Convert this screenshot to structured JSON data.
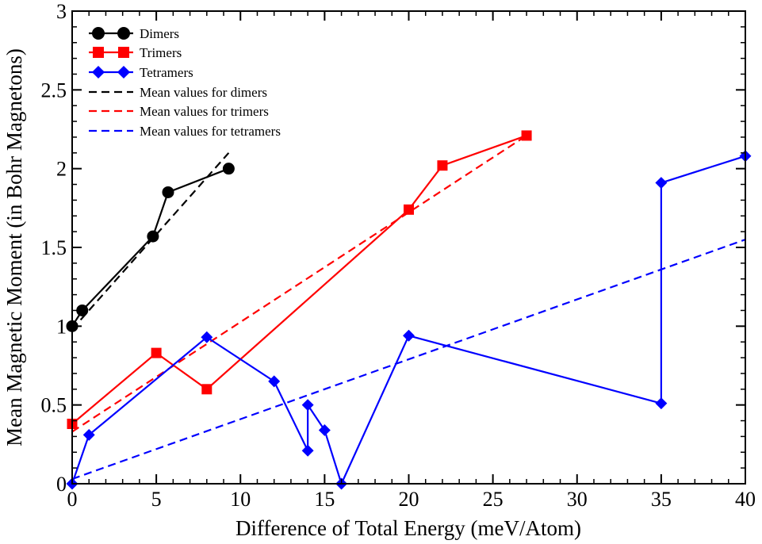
{
  "chart_data": {
    "type": "line",
    "title": "",
    "xlabel": "Difference of Total Energy (meV/Atom)",
    "ylabel": "Mean Magnetic Moment (in Bohr Magnetons)",
    "xlim": [
      0,
      40
    ],
    "ylim": [
      0,
      3
    ],
    "xticks": [
      0,
      5,
      10,
      15,
      20,
      25,
      30,
      35,
      40
    ],
    "yticks": [
      0,
      0.5,
      1,
      1.5,
      2,
      2.5,
      3
    ],
    "xtick_labels": [
      "0",
      "5",
      "10",
      "15",
      "20",
      "25",
      "30",
      "35",
      "40"
    ],
    "ytick_labels": [
      "0",
      "0.5",
      "1",
      "1.5",
      "2",
      "2.5",
      "3"
    ],
    "grid": false,
    "legend_position": "top-left",
    "series": [
      {
        "name": "Dimers",
        "style": "solid",
        "marker": "circle",
        "color": "#000000",
        "points": [
          [
            0,
            1.0
          ],
          [
            0.6,
            1.1
          ],
          [
            4.8,
            1.57
          ],
          [
            5.7,
            1.85
          ],
          [
            9.3,
            2.0
          ]
        ]
      },
      {
        "name": "Trimers",
        "style": "solid",
        "marker": "square",
        "color": "#ff0000",
        "points": [
          [
            0,
            0.38
          ],
          [
            5,
            0.83
          ],
          [
            8,
            0.6
          ],
          [
            20,
            1.74
          ],
          [
            22,
            2.02
          ],
          [
            27,
            2.21
          ]
        ]
      },
      {
        "name": "Tetramers",
        "style": "solid",
        "marker": "diamond",
        "color": "#0000ff",
        "points": [
          [
            0,
            0.0
          ],
          [
            1,
            0.31
          ],
          [
            8,
            0.93
          ],
          [
            12,
            0.65
          ],
          [
            14,
            0.21
          ],
          [
            14,
            0.5
          ],
          [
            15,
            0.34
          ],
          [
            16,
            0.0
          ],
          [
            20,
            0.94
          ],
          [
            35,
            0.51
          ],
          [
            35,
            1.91
          ],
          [
            40,
            2.08
          ]
        ]
      },
      {
        "name": "Mean values for dimers",
        "style": "dashed",
        "marker": "none",
        "color": "#000000",
        "points": [
          [
            0,
            0.98
          ],
          [
            9.3,
            2.1
          ]
        ]
      },
      {
        "name": "Mean values for trimers",
        "style": "dashed",
        "marker": "none",
        "color": "#ff0000",
        "points": [
          [
            0,
            0.33
          ],
          [
            27,
            2.21
          ]
        ]
      },
      {
        "name": "Mean values for tetramers",
        "style": "dashed",
        "marker": "none",
        "color": "#0000ff",
        "points": [
          [
            0,
            0.03
          ],
          [
            40,
            1.55
          ]
        ]
      }
    ]
  }
}
